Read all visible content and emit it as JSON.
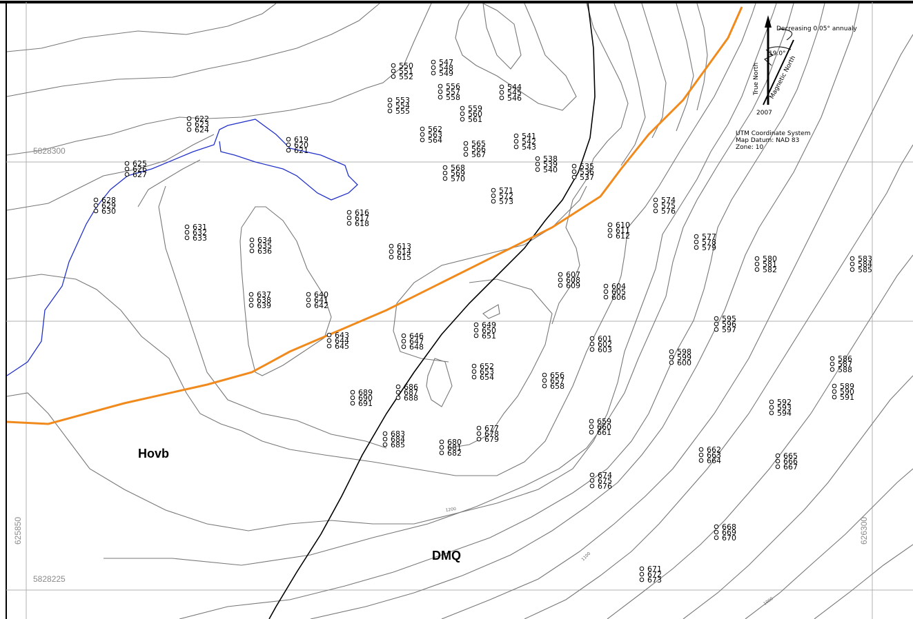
{
  "map": {
    "coords": {
      "northing_top": "5828300",
      "northing_bottom": "5828225",
      "easting_left": "625850",
      "easting_right": "626300"
    },
    "units": {
      "hovb": "Hovb",
      "dmq": "DMQ"
    },
    "declination": {
      "note": "Decreasing 0.05° annualy",
      "angle": "19.0°",
      "true_north": "True North",
      "magnetic_north": "Magnetic North",
      "year": "2007"
    },
    "system": {
      "line1": "UTM Coordinate System",
      "line2": "Map Datum: NAD 83",
      "line3": "Zone:   10"
    },
    "contour_labels": [
      "1200",
      "1100",
      "1000"
    ],
    "colors": {
      "road": "#f08a1c",
      "stream": "#2231c8",
      "contact": "#000000",
      "contour": "#777777",
      "grid": "#b0b0b0"
    },
    "sample_groups": [
      {
        "labels": [
          "550",
          "551",
          "552"
        ]
      },
      {
        "labels": [
          "547",
          "548",
          "549"
        ]
      },
      {
        "labels": [
          "556",
          "557",
          "558"
        ]
      },
      {
        "labels": [
          "544",
          "545",
          "546"
        ]
      },
      {
        "labels": [
          "553",
          "554",
          "555"
        ]
      },
      {
        "labels": [
          "559",
          "560",
          "561"
        ]
      },
      {
        "labels": [
          "622",
          "623",
          "624"
        ]
      },
      {
        "labels": [
          "562",
          "563",
          "564"
        ]
      },
      {
        "labels": [
          "541",
          "542",
          "543"
        ]
      },
      {
        "labels": [
          "619",
          "620",
          "621"
        ]
      },
      {
        "labels": [
          "565",
          "566",
          "567"
        ]
      },
      {
        "labels": [
          "538",
          "539",
          "540"
        ]
      },
      {
        "labels": [
          "625",
          "626",
          "627"
        ]
      },
      {
        "labels": [
          "568",
          "569",
          "570"
        ]
      },
      {
        "labels": [
          "535",
          "536",
          "537"
        ]
      },
      {
        "labels": [
          "571",
          "572",
          "573"
        ]
      },
      {
        "labels": [
          "628",
          "629",
          "630"
        ]
      },
      {
        "labels": [
          "616",
          "617",
          "618"
        ]
      },
      {
        "labels": [
          "574",
          "575",
          "576"
        ]
      },
      {
        "labels": [
          "631",
          "632",
          "633"
        ]
      },
      {
        "labels": [
          "610",
          "611",
          "612"
        ]
      },
      {
        "labels": [
          "634",
          "635",
          "636"
        ]
      },
      {
        "labels": [
          "613",
          "614",
          "615"
        ]
      },
      {
        "labels": [
          "577",
          "578",
          "579"
        ]
      },
      {
        "labels": [
          "580",
          "581",
          "582"
        ]
      },
      {
        "labels": [
          "583",
          "584",
          "585"
        ]
      },
      {
        "labels": [
          "607",
          "608",
          "609"
        ]
      },
      {
        "labels": [
          "604",
          "605",
          "606"
        ]
      },
      {
        "labels": [
          "637",
          "638",
          "639"
        ]
      },
      {
        "labels": [
          "640",
          "641",
          "642"
        ]
      },
      {
        "labels": [
          "649",
          "650",
          "651"
        ]
      },
      {
        "labels": [
          "595",
          "596",
          "597"
        ]
      },
      {
        "labels": [
          "643",
          "644",
          "645"
        ]
      },
      {
        "labels": [
          "646",
          "647",
          "648"
        ]
      },
      {
        "labels": [
          "601",
          "602",
          "603"
        ]
      },
      {
        "labels": [
          "598",
          "599",
          "600"
        ]
      },
      {
        "labels": [
          "586",
          "587",
          "588"
        ]
      },
      {
        "labels": [
          "652",
          "653",
          "654"
        ]
      },
      {
        "labels": [
          "656",
          "657",
          "658"
        ]
      },
      {
        "labels": [
          "589",
          "590",
          "591"
        ]
      },
      {
        "labels": [
          "686",
          "687",
          "688"
        ]
      },
      {
        "labels": [
          "689",
          "690",
          "691"
        ]
      },
      {
        "labels": [
          "592",
          "593",
          "594"
        ]
      },
      {
        "labels": [
          "659",
          "660",
          "661"
        ]
      },
      {
        "labels": [
          "677",
          "678",
          "679"
        ]
      },
      {
        "labels": [
          "683",
          "684",
          "685"
        ]
      },
      {
        "labels": [
          "680",
          "681",
          "682"
        ]
      },
      {
        "labels": [
          "662",
          "663",
          "664"
        ]
      },
      {
        "labels": [
          "665",
          "666",
          "667"
        ]
      },
      {
        "labels": [
          "674",
          "675",
          "676"
        ]
      },
      {
        "labels": [
          "668",
          "669",
          "670"
        ]
      },
      {
        "labels": [
          "671",
          "672",
          "673"
        ]
      }
    ]
  }
}
